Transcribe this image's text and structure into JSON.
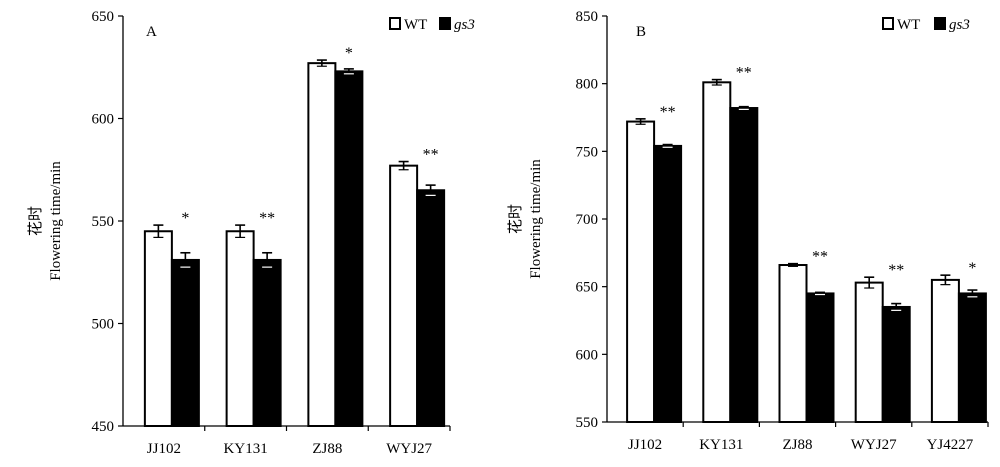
{
  "chart_data": [
    {
      "type": "bar",
      "panel_label": "A",
      "categories": [
        "JJ102",
        "KY131",
        "ZJ88",
        "WYJ27"
      ],
      "series": [
        {
          "name": "WT",
          "values": [
            545,
            545,
            627,
            577
          ],
          "errors": [
            3,
            3,
            1.5,
            2
          ],
          "color": "#ffffff"
        },
        {
          "name": "gs3",
          "values": [
            531,
            531,
            623,
            565
          ],
          "errors": [
            3.5,
            3.5,
            1.2,
            2.5
          ],
          "color": "#000000"
        }
      ],
      "significance": [
        "*",
        "**",
        "*",
        "**"
      ],
      "ylabel_cn": "花时",
      "ylabel": "Flowering time/min",
      "ylim": [
        450,
        650
      ],
      "yticks": [
        450,
        500,
        550,
        600,
        650
      ],
      "legend": "top-right",
      "grid": false
    },
    {
      "type": "bar",
      "panel_label": "B",
      "categories": [
        "JJ102",
        "KY131",
        "ZJ88",
        "WYJ27",
        "YJ4227"
      ],
      "series": [
        {
          "name": "WT",
          "values": [
            772,
            801,
            666,
            653,
            655
          ],
          "errors": [
            2,
            2,
            1,
            4,
            3.5
          ],
          "color": "#ffffff"
        },
        {
          "name": "gs3",
          "values": [
            754,
            782,
            645,
            635,
            645
          ],
          "errors": [
            1,
            1,
            0.8,
            2.5,
            2.5
          ],
          "color": "#000000"
        }
      ],
      "significance": [
        "**",
        "**",
        "**",
        "**",
        "*"
      ],
      "ylabel_cn": "花时",
      "ylabel": "Flowering time/min",
      "ylim": [
        550,
        850
      ],
      "yticks": [
        550,
        600,
        650,
        700,
        750,
        800,
        850
      ],
      "legend": "top-right",
      "grid": false
    }
  ]
}
